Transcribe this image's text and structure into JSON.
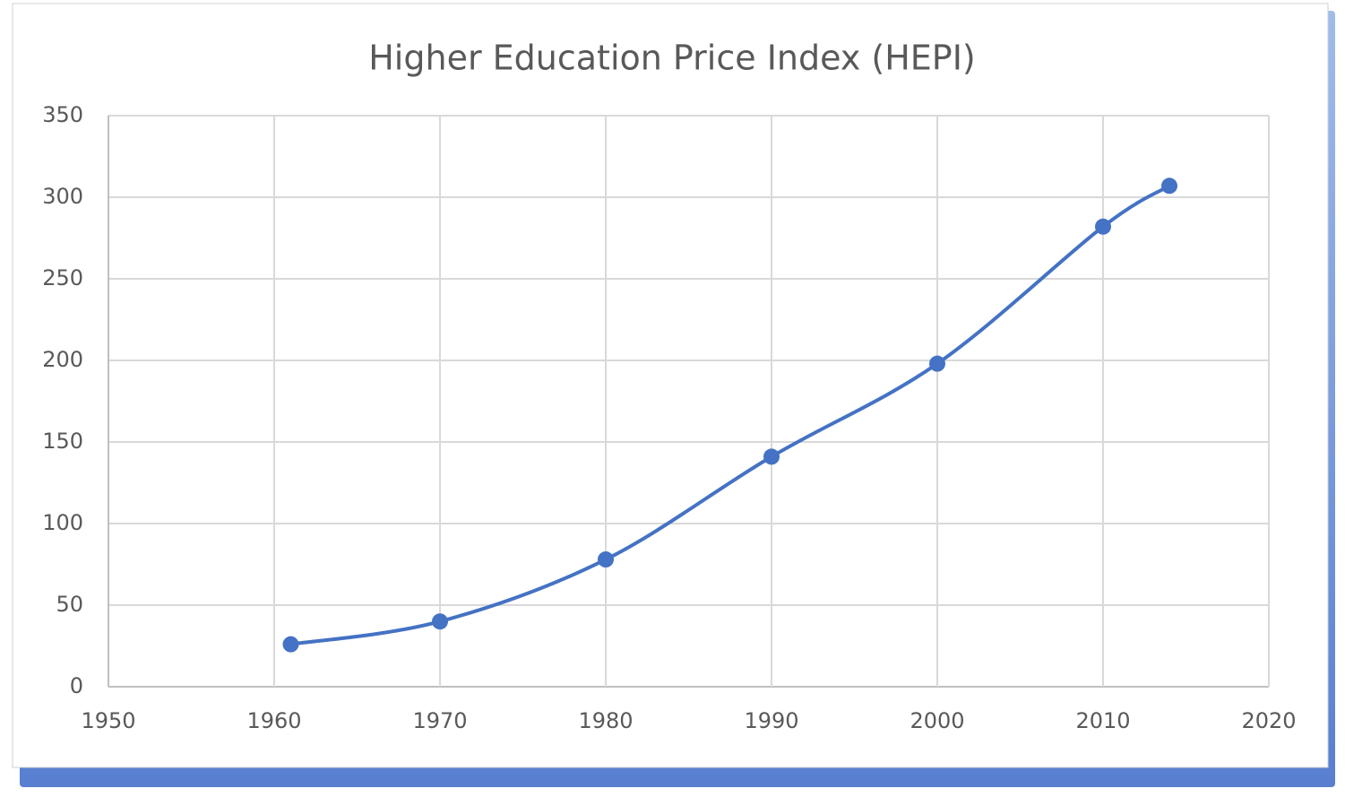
{
  "chart_data": {
    "type": "line",
    "title": "Higher Education Price Index (HEPI)",
    "x": [
      1961,
      1970,
      1980,
      1990,
      2000,
      2010,
      2014
    ],
    "series": [
      {
        "name": "HEPI",
        "color": "#4472c4",
        "values": [
          26,
          40,
          78,
          141,
          198,
          282,
          307
        ]
      }
    ],
    "xlim": [
      1950,
      2020
    ],
    "xticks": [
      1950,
      1960,
      1970,
      1980,
      1990,
      2000,
      2010,
      2020
    ],
    "ylim": [
      0,
      350
    ],
    "yticks": [
      0,
      50,
      100,
      150,
      200,
      250,
      300,
      350
    ],
    "grid": true,
    "smooth": true,
    "markers": true
  }
}
